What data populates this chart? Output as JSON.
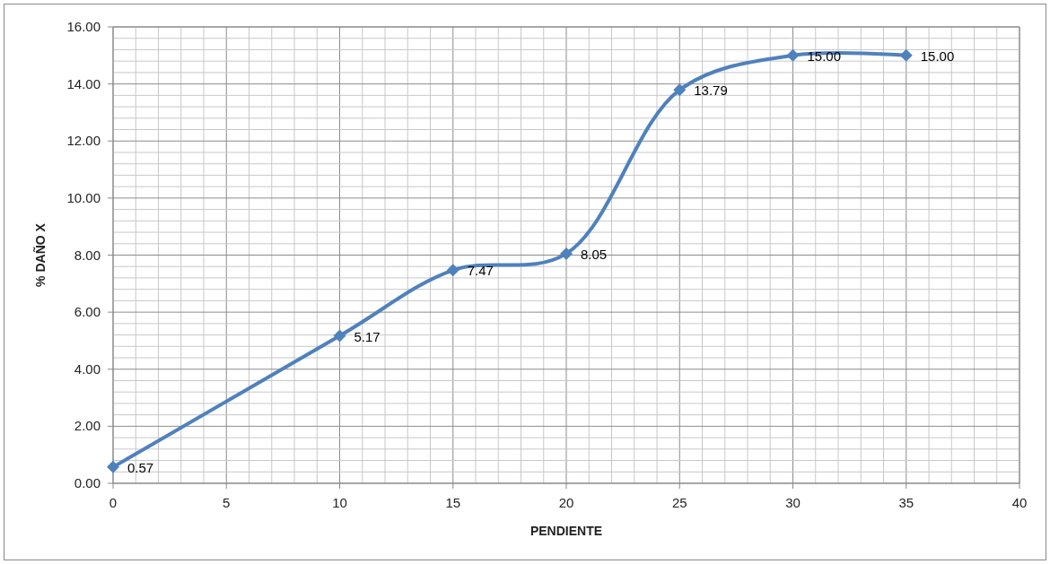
{
  "chart_data": {
    "type": "line",
    "xlabel": "PENDIENTE",
    "ylabel": "% DAÑO X",
    "x": [
      0,
      10,
      15,
      20,
      25,
      30,
      35
    ],
    "series": [
      {
        "color": "#4f81bd",
        "values": [
          0.57,
          5.17,
          7.47,
          8.05,
          13.79,
          15.0,
          15.0
        ],
        "value_labels": [
          "0.57",
          "5.17",
          "7.47",
          "8.05",
          "13.79",
          "15.00",
          "15.00"
        ]
      }
    ],
    "marker": "diamond",
    "line_style": "solid",
    "grid": true,
    "xlim": [
      0,
      40
    ],
    "xticks": [
      0,
      {
        "value": 1,
        "label": null
      },
      {
        "value": 2,
        "label": null
      },
      {
        "value": 3,
        "label": null
      },
      {
        "value": 4,
        "label": null
      },
      5,
      {
        "value": 6,
        "label": null
      },
      {
        "value": 7,
        "label": null
      },
      {
        "value": 8,
        "label": null
      },
      {
        "value": 9,
        "label": null
      },
      10,
      {
        "value": 11,
        "label": null
      },
      {
        "value": 12,
        "label": null
      },
      {
        "value": 13,
        "label": null
      },
      {
        "value": 14,
        "label": null
      },
      15,
      {
        "value": 16,
        "label": null
      },
      {
        "value": 17,
        "label": null
      },
      {
        "value": 18,
        "label": null
      },
      {
        "value": 19,
        "label": null
      },
      20,
      {
        "value": 21,
        "label": null
      },
      {
        "value": 22,
        "label": null
      },
      {
        "value": 23,
        "label": null
      },
      {
        "value": 24,
        "label": null
      },
      25,
      {
        "value": 26,
        "label": null
      },
      {
        "value": 27,
        "label": null
      },
      {
        "value": 28,
        "label": null
      },
      {
        "value": 29,
        "label": null
      },
      30,
      {
        "value": 31,
        "label": null
      },
      {
        "value": 32,
        "label": null
      },
      {
        "value": 33,
        "label": null
      },
      {
        "value": 34,
        "label": null
      },
      35,
      {
        "value": 36,
        "label": null
      },
      {
        "value": 37,
        "label": null
      },
      {
        "value": 38,
        "label": null
      },
      {
        "value": 39,
        "label": null
      },
      40
    ],
    "ylim": [
      0,
      16
    ],
    "yticks": [
      {
        "value": 0,
        "label": "0.00"
      },
      {
        "value": 0.4,
        "label": null
      },
      {
        "value": 0.8,
        "label": null
      },
      {
        "value": 1.2,
        "label": null
      },
      {
        "value": 1.6,
        "label": null
      },
      {
        "value": 2,
        "label": "2.00"
      },
      {
        "value": 2.4,
        "label": null
      },
      {
        "value": 2.8,
        "label": null
      },
      {
        "value": 3.2,
        "label": null
      },
      {
        "value": 3.6,
        "label": null
      },
      {
        "value": 4,
        "label": "4.00"
      },
      {
        "value": 4.4,
        "label": null
      },
      {
        "value": 4.8,
        "label": null
      },
      {
        "value": 5.2,
        "label": null
      },
      {
        "value": 5.6,
        "label": null
      },
      {
        "value": 6,
        "label": "6.00"
      },
      {
        "value": 6.4,
        "label": null
      },
      {
        "value": 6.8,
        "label": null
      },
      {
        "value": 7.2,
        "label": null
      },
      {
        "value": 7.6,
        "label": null
      },
      {
        "value": 8,
        "label": "8.00"
      },
      {
        "value": 8.4,
        "label": null
      },
      {
        "value": 8.8,
        "label": null
      },
      {
        "value": 9.2,
        "label": null
      },
      {
        "value": 9.6,
        "label": null
      },
      {
        "value": 10,
        "label": "10.00"
      },
      {
        "value": 10.4,
        "label": null
      },
      {
        "value": 10.8,
        "label": null
      },
      {
        "value": 11.2,
        "label": null
      },
      {
        "value": 11.6,
        "label": null
      },
      {
        "value": 12,
        "label": "12.00"
      },
      {
        "value": 12.4,
        "label": null
      },
      {
        "value": 12.8,
        "label": null
      },
      {
        "value": 13.2,
        "label": null
      },
      {
        "value": 13.6,
        "label": null
      },
      {
        "value": 14,
        "label": "14.00"
      },
      {
        "value": 14.4,
        "label": null
      },
      {
        "value": 14.8,
        "label": null
      },
      {
        "value": 15.2,
        "label": null
      },
      {
        "value": 15.6,
        "label": null
      },
      {
        "value": 16,
        "label": "16.00"
      }
    ]
  }
}
